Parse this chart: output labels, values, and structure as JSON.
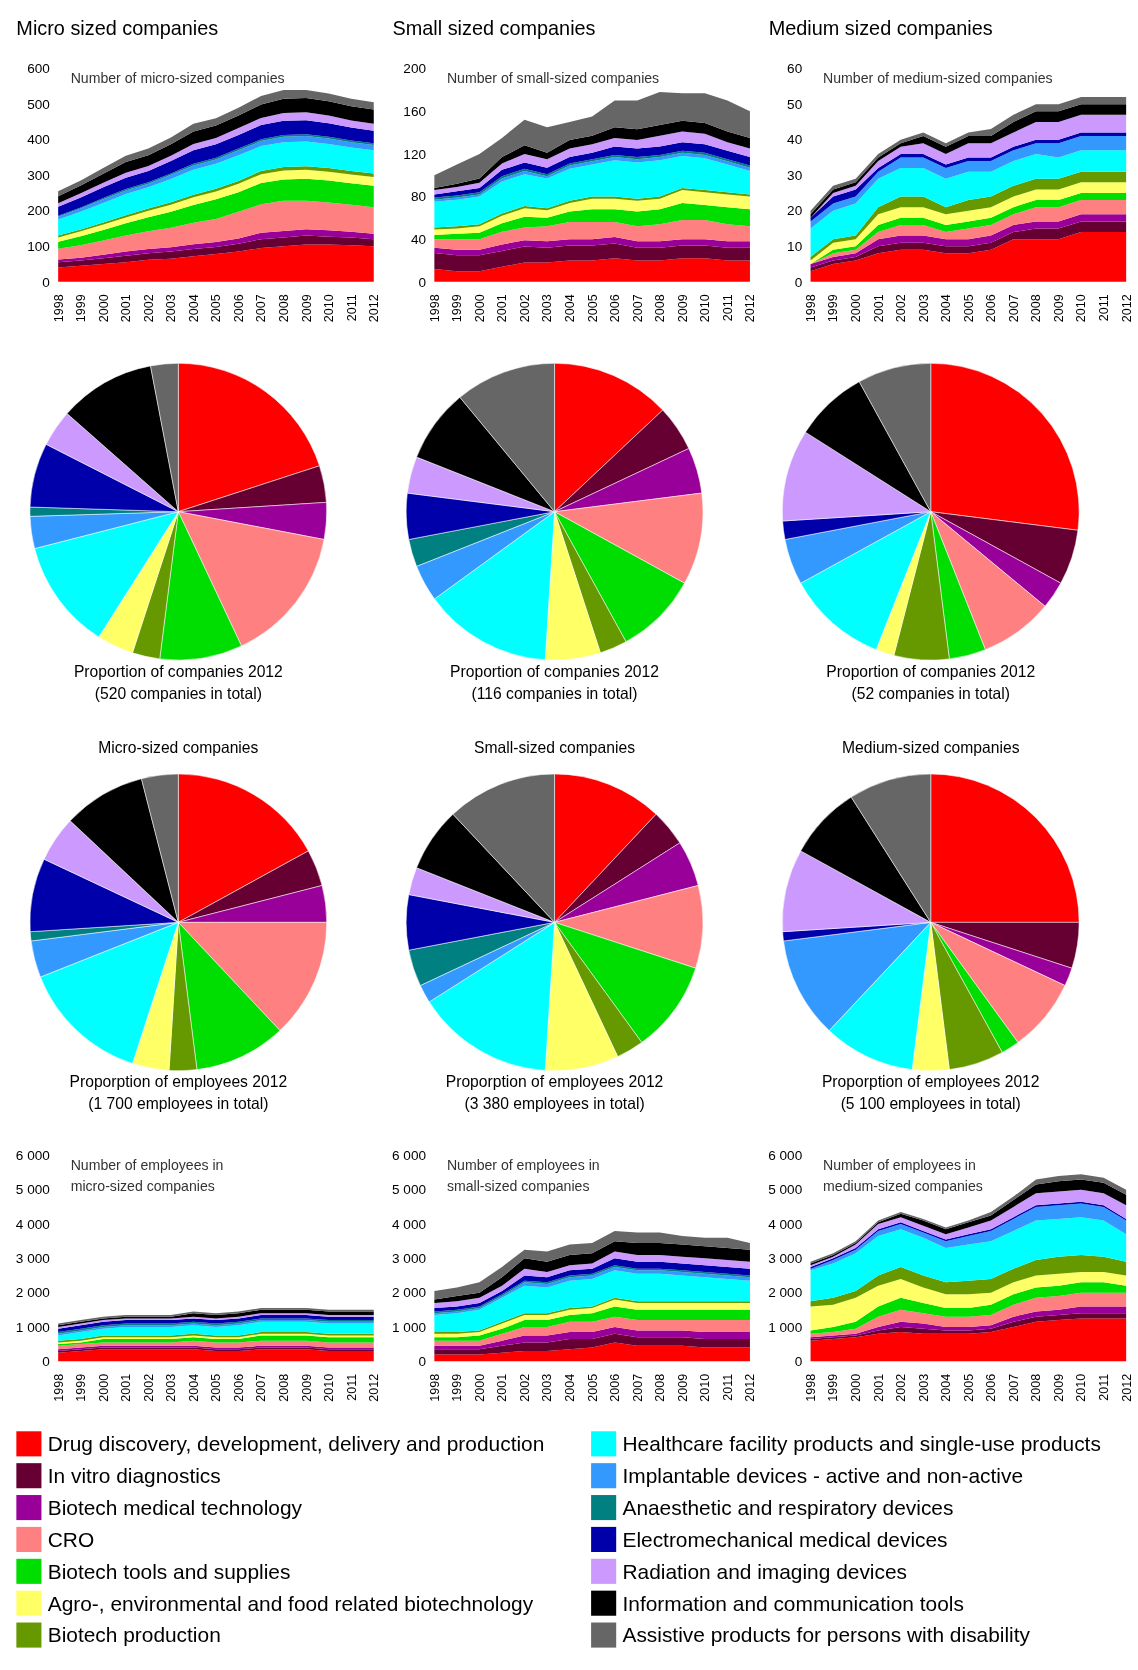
{
  "chart_data": [
    {
      "type": "area",
      "stacked": true,
      "title": "Micro sized companies",
      "annotations": [
        "Number of micro-sized companies"
      ],
      "legend": "bottom",
      "x": [
        1998,
        1999,
        2000,
        2001,
        2002,
        2003,
        2004,
        2005,
        2006,
        2007,
        2008,
        2009,
        2010,
        2011,
        2012
      ],
      "xlim": [
        1998,
        2012
      ],
      "xticks": [
        1998,
        1999,
        2000,
        2001,
        2002,
        2003,
        2004,
        2005,
        2006,
        2007,
        2008,
        2009,
        2010,
        2011,
        2012
      ],
      "ylim": [
        0,
        600
      ],
      "yticks": [
        0,
        100,
        200,
        300,
        400,
        500,
        600
      ],
      "series": [
        {
          "name": "Drug discovery, development, delivery and production",
          "color": "#ff0000",
          "values": [
            40,
            45,
            50,
            55,
            62,
            65,
            72,
            78,
            85,
            95,
            100,
            105,
            105,
            103,
            100
          ]
        },
        {
          "name": "In vitro diagnostics",
          "color": "#660033",
          "values": [
            15,
            15,
            16,
            18,
            18,
            20,
            20,
            20,
            22,
            25,
            25,
            25,
            22,
            22,
            20
          ]
        },
        {
          "name": "Biotech medical technology",
          "color": "#990099",
          "values": [
            8,
            8,
            10,
            12,
            12,
            12,
            14,
            14,
            15,
            18,
            18,
            18,
            18,
            16,
            15
          ]
        },
        {
          "name": "CRO",
          "color": "#ff8080",
          "values": [
            30,
            35,
            40,
            45,
            50,
            55,
            60,
            65,
            75,
            80,
            85,
            80,
            78,
            76,
            75
          ]
        },
        {
          "name": "Biotech tools and supplies",
          "color": "#00dd00",
          "values": [
            20,
            25,
            30,
            35,
            40,
            45,
            50,
            55,
            55,
            60,
            60,
            62,
            62,
            60,
            60
          ]
        },
        {
          "name": "Agro-, environmental and food related biotechnology",
          "color": "#ffff66",
          "values": [
            12,
            14,
            15,
            16,
            18,
            20,
            22,
            22,
            24,
            25,
            25,
            25,
            25,
            25,
            25
          ]
        },
        {
          "name": "Biotech production",
          "color": "#669900",
          "values": [
            5,
            5,
            6,
            6,
            6,
            7,
            7,
            8,
            8,
            9,
            10,
            10,
            10,
            10,
            10
          ]
        },
        {
          "name": "Healthcare facility products and single-use products",
          "color": "#00ffff",
          "values": [
            45,
            50,
            55,
            60,
            60,
            65,
            70,
            70,
            72,
            70,
            70,
            70,
            68,
            66,
            65
          ]
        },
        {
          "name": "Implantable devices - active and non-active",
          "color": "#3399ff",
          "values": [
            8,
            9,
            10,
            10,
            10,
            12,
            12,
            12,
            14,
            14,
            15,
            15,
            15,
            15,
            15
          ]
        },
        {
          "name": "Anaesthetic and respiratory devices",
          "color": "#008080",
          "values": [
            3,
            3,
            4,
            4,
            4,
            4,
            5,
            5,
            5,
            5,
            5,
            5,
            5,
            5,
            5
          ]
        },
        {
          "name": "Electromechanical medical devices",
          "color": "#0000aa",
          "values": [
            25,
            28,
            30,
            32,
            32,
            35,
            38,
            38,
            38,
            40,
            40,
            40,
            38,
            36,
            35
          ]
        },
        {
          "name": "Radiation and imaging devices",
          "color": "#cc99ff",
          "values": [
            10,
            12,
            13,
            14,
            14,
            15,
            18,
            18,
            20,
            20,
            22,
            22,
            22,
            20,
            20
          ]
        },
        {
          "name": "Information and communication tools",
          "color": "#000000",
          "values": [
            20,
            22,
            25,
            30,
            30,
            32,
            35,
            35,
            35,
            38,
            40,
            40,
            40,
            40,
            40
          ]
        },
        {
          "name": "Assistive products for persons with disability",
          "color": "#666666",
          "values": [
            14,
            14,
            16,
            18,
            19,
            19,
            22,
            20,
            22,
            24,
            25,
            23,
            22,
            21,
            20
          ]
        }
      ]
    },
    {
      "type": "area",
      "stacked": true,
      "title": "Small sized companies",
      "annotations": [
        "Number of small-sized companies"
      ],
      "x": [
        1998,
        1999,
        2000,
        2001,
        2002,
        2003,
        2004,
        2005,
        2006,
        2007,
        2008,
        2009,
        2010,
        2011,
        2012
      ],
      "xlim": [
        1998,
        2012
      ],
      "xticks": [
        1998,
        1999,
        2000,
        2001,
        2002,
        2003,
        2004,
        2005,
        2006,
        2007,
        2008,
        2009,
        2010,
        2011,
        2012
      ],
      "ylim": [
        0,
        200
      ],
      "yticks": [
        0,
        40,
        80,
        120,
        160,
        200
      ],
      "series": [
        {
          "color": "#ff0000",
          "values": [
            12,
            10,
            10,
            14,
            18,
            18,
            20,
            20,
            22,
            20,
            20,
            22,
            22,
            20,
            20
          ]
        },
        {
          "color": "#660033",
          "values": [
            15,
            15,
            15,
            15,
            15,
            14,
            14,
            14,
            14,
            12,
            12,
            12,
            12,
            12,
            12
          ]
        },
        {
          "color": "#990099",
          "values": [
            5,
            5,
            5,
            6,
            6,
            6,
            6,
            6,
            6,
            6,
            6,
            6,
            6,
            6,
            6
          ]
        },
        {
          "color": "#ff8080",
          "values": [
            8,
            10,
            10,
            12,
            12,
            14,
            16,
            16,
            14,
            14,
            16,
            18,
            18,
            16,
            14
          ]
        },
        {
          "color": "#00dd00",
          "values": [
            4,
            5,
            6,
            8,
            10,
            8,
            10,
            12,
            12,
            14,
            14,
            16,
            14,
            16,
            16
          ]
        },
        {
          "color": "#ffff66",
          "values": [
            5,
            5,
            6,
            7,
            8,
            7,
            8,
            10,
            10,
            10,
            10,
            12,
            12,
            12,
            12
          ]
        },
        {
          "color": "#669900",
          "values": [
            2,
            2,
            2,
            2,
            2,
            2,
            2,
            2,
            2,
            2,
            2,
            2,
            2,
            2,
            2
          ]
        },
        {
          "color": "#00ffff",
          "values": [
            24,
            25,
            26,
            30,
            30,
            28,
            30,
            30,
            34,
            34,
            34,
            30,
            30,
            26,
            22
          ]
        },
        {
          "color": "#3399ff",
          "values": [
            2,
            2,
            2,
            3,
            3,
            2,
            3,
            3,
            3,
            3,
            3,
            3,
            3,
            3,
            3
          ]
        },
        {
          "color": "#008080",
          "values": [
            2,
            2,
            2,
            2,
            2,
            2,
            2,
            2,
            2,
            2,
            2,
            2,
            2,
            2,
            2
          ]
        },
        {
          "color": "#0000aa",
          "values": [
            3,
            4,
            4,
            6,
            6,
            6,
            6,
            6,
            8,
            8,
            8,
            8,
            8,
            8,
            8
          ]
        },
        {
          "color": "#cc99ff",
          "values": [
            4,
            4,
            5,
            6,
            8,
            8,
            8,
            8,
            8,
            8,
            10,
            10,
            10,
            8,
            8
          ]
        },
        {
          "color": "#000000",
          "values": [
            2,
            3,
            4,
            6,
            8,
            6,
            8,
            8,
            10,
            10,
            10,
            10,
            10,
            10,
            10
          ]
        },
        {
          "color": "#666666",
          "values": [
            12,
            18,
            23,
            18,
            24,
            24,
            17,
            18,
            25,
            27,
            31,
            26,
            28,
            29,
            25
          ]
        }
      ]
    },
    {
      "type": "area",
      "stacked": true,
      "title": "Medium sized companies",
      "annotations": [
        "Number of medium-sized companies"
      ],
      "x": [
        1998,
        1999,
        2000,
        2001,
        2002,
        2003,
        2004,
        2005,
        2006,
        2007,
        2008,
        2009,
        2010,
        2011,
        2012
      ],
      "xlim": [
        1998,
        2012
      ],
      "xticks": [
        1998,
        1999,
        2000,
        2001,
        2002,
        2003,
        2004,
        2005,
        2006,
        2007,
        2008,
        2009,
        2010,
        2011,
        2012
      ],
      "ylim": [
        0,
        60
      ],
      "yticks": [
        0,
        10,
        20,
        30,
        40,
        50,
        60
      ],
      "series": [
        {
          "color": "#ff0000",
          "values": [
            3,
            5,
            6,
            8,
            9,
            9,
            8,
            8,
            9,
            12,
            12,
            12,
            14,
            14,
            14
          ]
        },
        {
          "color": "#660033",
          "values": [
            1,
            1,
            1,
            2,
            2,
            2,
            2,
            2,
            2,
            2,
            3,
            3,
            3,
            3,
            3
          ]
        },
        {
          "color": "#990099",
          "values": [
            1,
            1,
            1,
            2,
            2,
            2,
            2,
            2,
            2,
            2,
            2,
            2,
            2,
            2,
            2
          ]
        },
        {
          "color": "#ff8080",
          "values": [
            0,
            1,
            1,
            2,
            3,
            3,
            2,
            3,
            3,
            3,
            4,
            4,
            4,
            4,
            4
          ]
        },
        {
          "color": "#00dd00",
          "values": [
            0,
            1,
            1,
            2,
            2,
            2,
            2,
            2,
            2,
            2,
            2,
            2,
            2,
            2,
            2
          ]
        },
        {
          "color": "#ffff66",
          "values": [
            1,
            2,
            2,
            3,
            3,
            3,
            3,
            3,
            3,
            3,
            3,
            3,
            3,
            3,
            3
          ]
        },
        {
          "color": "#669900",
          "values": [
            1,
            1,
            1,
            2,
            3,
            3,
            2,
            3,
            3,
            3,
            3,
            3,
            3,
            3,
            3
          ]
        },
        {
          "color": "#00ffff",
          "values": [
            8,
            8,
            9,
            8,
            8,
            8,
            8,
            8,
            7,
            7,
            7,
            6,
            6,
            6,
            6
          ]
        },
        {
          "color": "#3399ff",
          "values": [
            2,
            2,
            2,
            2,
            3,
            3,
            3,
            3,
            3,
            3,
            3,
            4,
            4,
            4,
            4
          ]
        },
        {
          "color": "#0000aa",
          "values": [
            1,
            2,
            2,
            1,
            1,
            1,
            1,
            1,
            1,
            1,
            1,
            1,
            1,
            1,
            1
          ]
        },
        {
          "color": "#cc99ff",
          "values": [
            0,
            1,
            1,
            2,
            2,
            3,
            3,
            4,
            4,
            4,
            5,
            5,
            5,
            5,
            5
          ]
        },
        {
          "color": "#000000",
          "values": [
            1,
            1,
            1,
            1,
            1,
            2,
            2,
            2,
            2,
            3,
            3,
            3,
            3,
            3,
            3
          ]
        },
        {
          "color": "#666666",
          "values": [
            1,
            1,
            1,
            1,
            1,
            1,
            1,
            1,
            2,
            2,
            2,
            2,
            2,
            2,
            2
          ]
        }
      ]
    },
    {
      "type": "pie",
      "annotations": [
        "Proportion of companies 2012",
        "(520 companies in total)"
      ],
      "categories": [
        null,
        null,
        null,
        null,
        null,
        null,
        null,
        null,
        null,
        null,
        null,
        null,
        null,
        null
      ],
      "colors": [
        "#ff0000",
        "#660033",
        "#990099",
        "#ff8080",
        "#00dd00",
        "#669900",
        "#ffff66",
        "#00ffff",
        "#3399ff",
        "#008080",
        "#0000aa",
        "#cc99ff",
        "#000000",
        "#666666"
      ],
      "values": [
        20,
        4,
        4,
        15,
        9,
        3,
        4,
        12,
        3.5,
        1,
        7,
        4,
        10.5,
        3
      ]
    },
    {
      "type": "pie",
      "annotations": [
        "Proportion of companies 2012",
        "(116 companies in total)"
      ],
      "categories": [
        null,
        null,
        null,
        null,
        null,
        null,
        null,
        null,
        null,
        null,
        null,
        null,
        null,
        null
      ],
      "colors": [
        "#ff0000",
        "#660033",
        "#990099",
        "#ff8080",
        "#00dd00",
        "#669900",
        "#ffff66",
        "#00ffff",
        "#3399ff",
        "#008080",
        "#0000aa",
        "#cc99ff",
        "#000000",
        "#666666"
      ],
      "values": [
        13,
        5,
        5,
        10,
        9,
        3,
        6,
        14,
        4,
        3,
        5,
        4,
        8,
        11
      ]
    },
    {
      "type": "pie",
      "annotations": [
        "Proportion of companies 2012",
        "(52 companies in total)"
      ],
      "categories": [
        null,
        null,
        null,
        null,
        null,
        null,
        null,
        null,
        null,
        null,
        null,
        null,
        null
      ],
      "colors": [
        "#ff0000",
        "#660033",
        "#990099",
        "#ff8080",
        "#00dd00",
        "#669900",
        "#ffff66",
        "#00ffff",
        "#3399ff",
        "#0000aa",
        "#cc99ff",
        "#000000",
        "#666666"
      ],
      "values": [
        27,
        6,
        3,
        8,
        4,
        6,
        2,
        11,
        5,
        2,
        10,
        8,
        8
      ]
    },
    {
      "type": "pie",
      "title": "Micro-sized companies",
      "annotations": [
        "Proporption of employees 2012",
        "(1 700 employees in total)"
      ],
      "categories": [
        null,
        null,
        null,
        null,
        null,
        null,
        null,
        null,
        null,
        null,
        null,
        null,
        null,
        null
      ],
      "colors": [
        "#ff0000",
        "#660033",
        "#990099",
        "#ff8080",
        "#00dd00",
        "#669900",
        "#ffff66",
        "#00ffff",
        "#3399ff",
        "#008080",
        "#0000aa",
        "#cc99ff",
        "#000000",
        "#666666"
      ],
      "values": [
        17,
        4,
        4,
        13,
        10,
        3,
        4,
        14,
        4,
        1,
        8,
        5,
        9,
        4
      ]
    },
    {
      "type": "pie",
      "title": "Small-sized companies",
      "annotations": [
        "Proporption of employees 2012",
        "(3 380 employees in total)"
      ],
      "categories": [
        null,
        null,
        null,
        null,
        null,
        null,
        null,
        null,
        null,
        null,
        null,
        null,
        null,
        null
      ],
      "colors": [
        "#ff0000",
        "#660033",
        "#990099",
        "#ff8080",
        "#00dd00",
        "#669900",
        "#ffff66",
        "#00ffff",
        "#3399ff",
        "#008080",
        "#0000aa",
        "#cc99ff",
        "#000000",
        "#666666"
      ],
      "values": [
        12,
        4,
        5,
        9,
        10,
        3,
        8,
        15,
        2,
        4,
        6,
        3,
        7,
        12
      ]
    },
    {
      "type": "pie",
      "title": "Medium-sized companies",
      "annotations": [
        "Proporption of employees 2012",
        "(5 100 employees in total)"
      ],
      "categories": [
        null,
        null,
        null,
        null,
        null,
        null,
        null,
        null,
        null,
        null,
        null,
        null,
        null
      ],
      "colors": [
        "#ff0000",
        "#660033",
        "#990099",
        "#ff8080",
        "#00dd00",
        "#669900",
        "#ffff66",
        "#00ffff",
        "#3399ff",
        "#0000aa",
        "#cc99ff",
        "#000000",
        "#666666"
      ],
      "values": [
        25,
        5,
        2,
        8,
        2,
        6,
        4,
        10,
        11,
        1,
        9,
        8,
        9
      ]
    },
    {
      "type": "area",
      "stacked": true,
      "annotations": [
        "Number of employees in",
        "micro-sized companies"
      ],
      "x": [
        1998,
        1999,
        2000,
        2001,
        2002,
        2003,
        2004,
        2005,
        2006,
        2007,
        2008,
        2009,
        2010,
        2011,
        2012
      ],
      "xlim": [
        1998,
        2012
      ],
      "xticks": [
        1998,
        1999,
        2000,
        2001,
        2002,
        2003,
        2004,
        2005,
        2006,
        2007,
        2008,
        2009,
        2010,
        2011,
        2012
      ],
      "ylim": [
        0,
        6000
      ],
      "yticks": [
        0,
        {
          "value": 1000,
          "label": "1 000"
        },
        {
          "value": 2000,
          "label": "2 000"
        },
        {
          "value": 3000,
          "label": "3 000"
        },
        {
          "value": 4000,
          "label": "4 000"
        },
        {
          "value": 5000,
          "label": "5 000"
        },
        {
          "value": 6000,
          "label": "6 000"
        }
      ],
      "series": [
        {
          "color": "#ff0000",
          "values": [
            250,
            300,
            350,
            350,
            350,
            350,
            350,
            300,
            300,
            350,
            350,
            350,
            300,
            300,
            300
          ]
        },
        {
          "color": "#660033",
          "values": [
            50,
            50,
            50,
            50,
            50,
            50,
            50,
            50,
            50,
            50,
            50,
            50,
            50,
            50,
            50
          ]
        },
        {
          "color": "#990099",
          "values": [
            50,
            50,
            50,
            50,
            50,
            50,
            50,
            50,
            50,
            50,
            50,
            50,
            50,
            50,
            50
          ]
        },
        {
          "color": "#ff8080",
          "values": [
            100,
            100,
            100,
            100,
            100,
            100,
            150,
            150,
            150,
            150,
            150,
            150,
            150,
            150,
            150
          ]
        },
        {
          "color": "#00dd00",
          "values": [
            50,
            50,
            100,
            100,
            100,
            100,
            100,
            100,
            100,
            150,
            150,
            150,
            150,
            150,
            150
          ]
        },
        {
          "color": "#ffff66",
          "values": [
            50,
            50,
            50,
            50,
            50,
            50,
            50,
            50,
            50,
            50,
            50,
            50,
            50,
            50,
            50
          ]
        },
        {
          "color": "#669900",
          "values": [
            50,
            50,
            50,
            50,
            50,
            50,
            50,
            50,
            50,
            50,
            50,
            50,
            50,
            50,
            50
          ]
        },
        {
          "color": "#00ffff",
          "values": [
            150,
            200,
            200,
            250,
            250,
            250,
            250,
            250,
            300,
            300,
            300,
            300,
            300,
            300,
            300
          ]
        },
        {
          "color": "#3399ff",
          "values": [
            50,
            50,
            50,
            50,
            50,
            50,
            50,
            50,
            50,
            50,
            50,
            50,
            50,
            50,
            50
          ]
        },
        {
          "color": "#008080",
          "values": [
            50,
            50,
            50,
            50,
            50,
            50,
            50,
            50,
            50,
            50,
            50,
            50,
            50,
            50,
            50
          ]
        },
        {
          "color": "#0000aa",
          "values": [
            100,
            100,
            100,
            100,
            100,
            100,
            100,
            100,
            100,
            100,
            100,
            100,
            100,
            100,
            100
          ]
        },
        {
          "color": "#cc99ff",
          "values": [
            50,
            50,
            50,
            50,
            50,
            50,
            50,
            50,
            50,
            50,
            50,
            50,
            50,
            50,
            50
          ]
        },
        {
          "color": "#000000",
          "values": [
            50,
            50,
            50,
            50,
            50,
            50,
            100,
            100,
            100,
            100,
            100,
            100,
            100,
            100,
            100
          ]
        },
        {
          "color": "#666666",
          "values": [
            50,
            50,
            50,
            50,
            50,
            50,
            50,
            50,
            50,
            50,
            50,
            50,
            50,
            50,
            50
          ]
        }
      ]
    },
    {
      "type": "area",
      "stacked": true,
      "annotations": [
        "Number of employees in",
        "small-sized companies"
      ],
      "x": [
        1998,
        1999,
        2000,
        2001,
        2002,
        2003,
        2004,
        2005,
        2006,
        2007,
        2008,
        2009,
        2010,
        2011,
        2012
      ],
      "xlim": [
        1998,
        2012
      ],
      "xticks": [
        1998,
        1999,
        2000,
        2001,
        2002,
        2003,
        2004,
        2005,
        2006,
        2007,
        2008,
        2009,
        2010,
        2011,
        2012
      ],
      "ylim": [
        0,
        6000
      ],
      "yticks": [
        0,
        {
          "value": 1000,
          "label": "1 000"
        },
        {
          "value": 2000,
          "label": "2 000"
        },
        {
          "value": 3000,
          "label": "3 000"
        },
        {
          "value": 4000,
          "label": "4 000"
        },
        {
          "value": 5000,
          "label": "5 000"
        },
        {
          "value": 6000,
          "label": "6 000"
        }
      ],
      "series": [
        {
          "color": "#ff0000",
          "values": [
            200,
            200,
            200,
            250,
            300,
            300,
            350,
            400,
            550,
            450,
            450,
            450,
            400,
            400,
            400
          ]
        },
        {
          "color": "#660033",
          "values": [
            150,
            150,
            150,
            200,
            250,
            250,
            300,
            250,
            250,
            250,
            250,
            250,
            250,
            250,
            250
          ]
        },
        {
          "color": "#990099",
          "values": [
            100,
            100,
            100,
            150,
            200,
            200,
            200,
            200,
            200,
            200,
            200,
            200,
            200,
            200,
            200
          ]
        },
        {
          "color": "#ff8080",
          "values": [
            150,
            150,
            150,
            200,
            250,
            250,
            300,
            300,
            300,
            300,
            300,
            300,
            350,
            350,
            350
          ]
        },
        {
          "color": "#00dd00",
          "values": [
            100,
            100,
            150,
            150,
            200,
            200,
            200,
            250,
            300,
            300,
            300,
            300,
            300,
            300,
            300
          ]
        },
        {
          "color": "#ffff66",
          "values": [
            100,
            100,
            100,
            150,
            150,
            150,
            150,
            150,
            200,
            200,
            200,
            200,
            200,
            200,
            200
          ]
        },
        {
          "color": "#669900",
          "values": [
            50,
            50,
            50,
            50,
            50,
            50,
            50,
            50,
            50,
            50,
            50,
            50,
            50,
            50,
            50
          ]
        },
        {
          "color": "#00ffff",
          "values": [
            500,
            550,
            600,
            700,
            800,
            750,
            800,
            800,
            800,
            800,
            800,
            750,
            700,
            650,
            600
          ]
        },
        {
          "color": "#3399ff",
          "values": [
            50,
            50,
            50,
            50,
            100,
            100,
            100,
            100,
            100,
            100,
            100,
            100,
            100,
            100,
            100
          ]
        },
        {
          "color": "#008080",
          "values": [
            50,
            50,
            50,
            50,
            50,
            50,
            50,
            50,
            50,
            50,
            50,
            50,
            50,
            50,
            50
          ]
        },
        {
          "color": "#0000aa",
          "values": [
            100,
            100,
            100,
            100,
            150,
            150,
            150,
            150,
            200,
            200,
            200,
            200,
            200,
            200,
            200
          ]
        },
        {
          "color": "#cc99ff",
          "values": [
            150,
            150,
            150,
            150,
            200,
            150,
            150,
            150,
            200,
            200,
            200,
            200,
            200,
            200,
            200
          ]
        },
        {
          "color": "#000000",
          "values": [
            100,
            150,
            150,
            250,
            300,
            300,
            300,
            300,
            300,
            350,
            350,
            350,
            350,
            350,
            350
          ]
        },
        {
          "color": "#666666",
          "values": [
            250,
            250,
            300,
            300,
            250,
            300,
            300,
            300,
            300,
            300,
            300,
            250,
            250,
            300,
            200
          ]
        }
      ]
    },
    {
      "type": "area",
      "stacked": true,
      "annotations": [
        "Number of employees in",
        "medium-sized companies"
      ],
      "x": [
        1998,
        1999,
        2000,
        2001,
        2002,
        2003,
        2004,
        2005,
        2006,
        2007,
        2008,
        2009,
        2010,
        2011,
        2012
      ],
      "xlim": [
        1998,
        2012
      ],
      "xticks": [
        1998,
        1999,
        2000,
        2001,
        2002,
        2003,
        2004,
        2005,
        2006,
        2007,
        2008,
        2009,
        2010,
        2011,
        2012
      ],
      "ylim": [
        0,
        6000
      ],
      "yticks": [
        0,
        {
          "value": 1000,
          "label": "1 000"
        },
        {
          "value": 2000,
          "label": "2 000"
        },
        {
          "value": 3000,
          "label": "3 000"
        },
        {
          "value": 4000,
          "label": "4 000"
        },
        {
          "value": 5000,
          "label": "5 000"
        },
        {
          "value": 6000,
          "label": "6 000"
        }
      ],
      "series": [
        {
          "color": "#ff0000",
          "values": [
            600,
            650,
            700,
            800,
            850,
            800,
            800,
            800,
            850,
            1000,
            1150,
            1200,
            1250,
            1250,
            1250
          ]
        },
        {
          "color": "#660033",
          "values": [
            50,
            50,
            50,
            100,
            150,
            150,
            100,
            100,
            100,
            150,
            150,
            150,
            150,
            150,
            150
          ]
        },
        {
          "color": "#990099",
          "values": [
            50,
            50,
            50,
            100,
            150,
            150,
            100,
            100,
            100,
            150,
            150,
            150,
            200,
            200,
            200
          ]
        },
        {
          "color": "#ff8080",
          "values": [
            100,
            100,
            150,
            300,
            350,
            300,
            300,
            300,
            300,
            350,
            400,
            400,
            400,
            400,
            400
          ]
        },
        {
          "color": "#00dd00",
          "values": [
            100,
            150,
            200,
            300,
            350,
            300,
            250,
            250,
            300,
            300,
            300,
            300,
            300,
            300,
            200
          ]
        },
        {
          "color": "#ffff66",
          "values": [
            700,
            650,
            700,
            600,
            550,
            450,
            400,
            400,
            350,
            350,
            350,
            350,
            300,
            300,
            300
          ]
        },
        {
          "color": "#669900",
          "values": [
            150,
            200,
            200,
            300,
            350,
            350,
            350,
            400,
            400,
            400,
            450,
            500,
            500,
            450,
            400
          ]
        },
        {
          "color": "#00ffff",
          "values": [
            900,
            1000,
            1100,
            1150,
            1100,
            1100,
            1000,
            1050,
            1100,
            1100,
            1150,
            1100,
            1100,
            1050,
            800
          ]
        },
        {
          "color": "#3399ff",
          "values": [
            50,
            100,
            100,
            150,
            150,
            150,
            200,
            250,
            300,
            350,
            400,
            400,
            400,
            400,
            400
          ]
        },
        {
          "color": "#0000aa",
          "values": [
            50,
            50,
            50,
            50,
            50,
            50,
            50,
            50,
            50,
            50,
            50,
            50,
            50,
            50,
            50
          ]
        },
        {
          "color": "#cc99ff",
          "values": [
            50,
            50,
            100,
            150,
            150,
            150,
            150,
            200,
            250,
            300,
            350,
            350,
            350,
            350,
            400
          ]
        },
        {
          "color": "#000000",
          "values": [
            50,
            50,
            50,
            50,
            100,
            150,
            150,
            150,
            150,
            200,
            250,
            300,
            300,
            300,
            300
          ]
        },
        {
          "color": "#666666",
          "values": [
            50,
            50,
            50,
            50,
            50,
            50,
            50,
            50,
            100,
            100,
            150,
            150,
            150,
            150,
            150
          ]
        }
      ]
    }
  ]
}
